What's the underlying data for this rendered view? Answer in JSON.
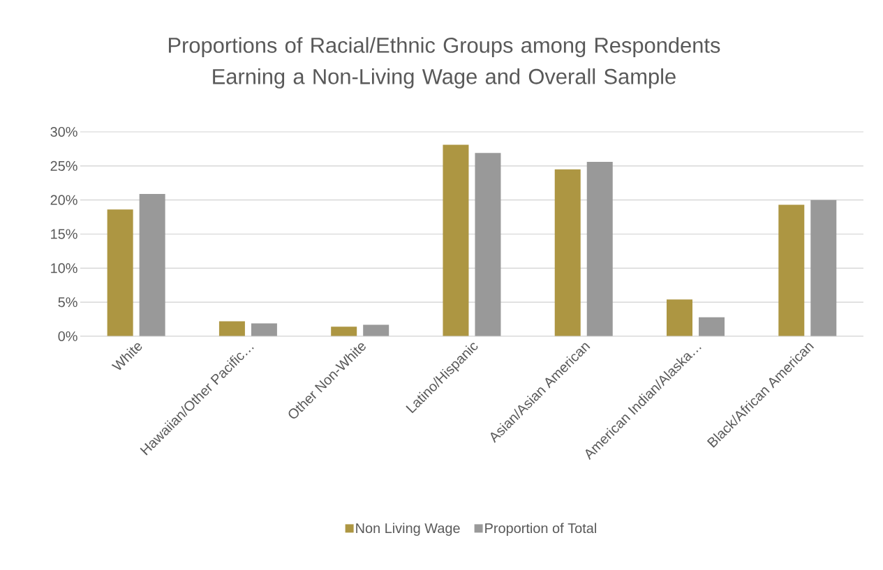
{
  "chart_data": {
    "type": "bar",
    "title": "Proportions of Racial/Ethnic Groups among Respondents Earning a Non-Living Wage and Overall Sample",
    "categories": [
      "White",
      "Hawaiian/Other Pacific…",
      "Other Non-White",
      "Latino/Hispanic",
      "Asian/Asian American",
      "American Indian/Alaska…",
      "Black/African American"
    ],
    "series": [
      {
        "name": "Non Living Wage",
        "color": "#ad9642",
        "values": [
          18.6,
          2.2,
          1.4,
          28.1,
          24.5,
          5.4,
          19.3
        ]
      },
      {
        "name": "Proportion of Total",
        "color": "#999999",
        "values": [
          20.9,
          1.9,
          1.7,
          26.9,
          25.6,
          2.8,
          20.0
        ]
      }
    ],
    "ylim": [
      0,
      30
    ],
    "yticks": [
      {
        "value": 0,
        "label": "0%"
      },
      {
        "value": 5,
        "label": "5%"
      },
      {
        "value": 10,
        "label": "10%"
      },
      {
        "value": 15,
        "label": "15%"
      },
      {
        "value": 20,
        "label": "20%"
      },
      {
        "value": 25,
        "label": "25%"
      },
      {
        "value": 30,
        "label": "30%"
      }
    ],
    "grid": "y",
    "legend": "bottom"
  }
}
